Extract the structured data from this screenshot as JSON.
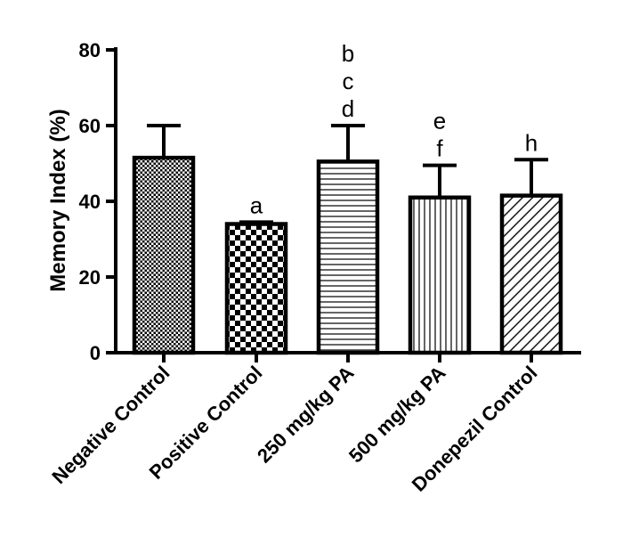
{
  "chart_data": {
    "type": "bar",
    "title": "",
    "xlabel": "",
    "ylabel": "Memory Index (%)",
    "ylim": [
      0,
      80
    ],
    "yticks": [
      0,
      20,
      40,
      60,
      80
    ],
    "grid": false,
    "categories": [
      "Negative Control",
      "Positive Control",
      "250 mg/kg PA",
      "500 mg/kg PA",
      "Donepezil Control"
    ],
    "values": [
      51.5,
      34,
      50.5,
      41,
      41.5
    ],
    "error": [
      8.5,
      0.5,
      9.5,
      8.5,
      9.5
    ],
    "patterns": [
      "dense-checker",
      "checkerboard",
      "horizontal-lines",
      "vertical-lines",
      "diagonal-lines"
    ],
    "annotations": [
      {
        "category": "Negative Control",
        "labels": []
      },
      {
        "category": "Positive Control",
        "labels": [
          "a"
        ]
      },
      {
        "category": "250 mg/kg PA",
        "labels": [
          "b",
          "c",
          "d"
        ]
      },
      {
        "category": "500 mg/kg PA",
        "labels": [
          "e",
          "f"
        ]
      },
      {
        "category": "Donepezil Control",
        "labels": [
          "h"
        ]
      }
    ]
  },
  "colors": {
    "stroke": "#000000",
    "fill": "#ffffff"
  }
}
